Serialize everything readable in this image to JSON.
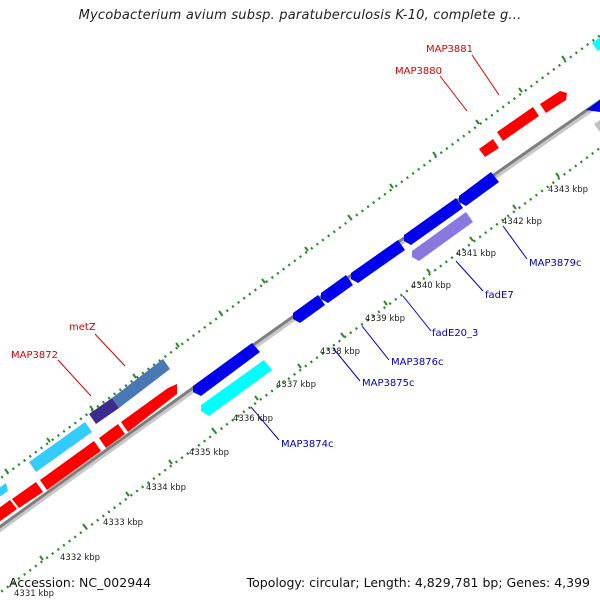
{
  "title": "Mycobacterium avium subsp. paratuberculosis K-10, complete g...",
  "footer": {
    "accession": "Accession: NC_002944",
    "summary": "Topology: circular; Length: 4,829,781 bp; Genes: 4,399"
  },
  "colors": {
    "forward_cds": "#ff0000",
    "reverse_cds": "#0000ee",
    "forward_label": "#dd0000",
    "reverse_label": "#0000cc",
    "cyan_feature": "#00ffff",
    "light_blue_feature": "#33ccff",
    "steel_feature": "#4a78b4",
    "purple_feature": "#8878e0",
    "dark_purple_feature": "#3c2a8c",
    "backbone": "#808080",
    "tick_dots": "#2a8a2a"
  },
  "ticks": [
    {
      "label": "4331 kbp"
    },
    {
      "label": "4332 kbp"
    },
    {
      "label": "4333 kbp"
    },
    {
      "label": "4334 kbp"
    },
    {
      "label": "4335 kbp"
    },
    {
      "label": "4336 kbp"
    },
    {
      "label": "4337 kbp"
    },
    {
      "label": "4338 kbp"
    },
    {
      "label": "4339 kbp"
    },
    {
      "label": "4340 kbp"
    },
    {
      "label": "4341 kbp"
    },
    {
      "label": "4342 kbp"
    },
    {
      "label": "4343 kbp"
    }
  ],
  "gene_labels": [
    {
      "name": "MAP3881",
      "strand": "forward"
    },
    {
      "name": "MAP3880",
      "strand": "forward"
    },
    {
      "name": "metZ",
      "strand": "forward"
    },
    {
      "name": "MAP3872",
      "strand": "forward"
    },
    {
      "name": "MAP3879c",
      "strand": "reverse"
    },
    {
      "name": "fadE7",
      "strand": "reverse"
    },
    {
      "name": "fadE20_3",
      "strand": "reverse"
    },
    {
      "name": "MAP3876c",
      "strand": "reverse"
    },
    {
      "name": "MAP3875c",
      "strand": "reverse"
    },
    {
      "name": "MAP3874c",
      "strand": "reverse"
    }
  ]
}
